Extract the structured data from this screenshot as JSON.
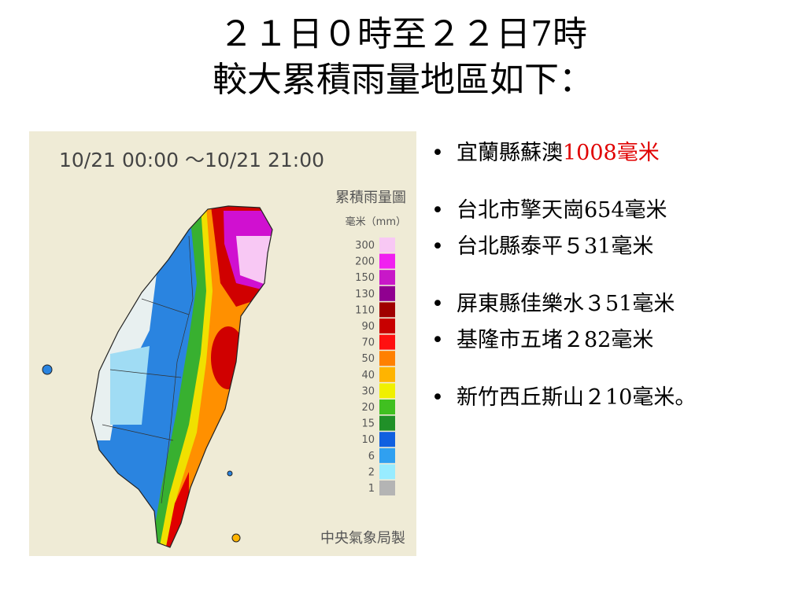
{
  "header": {
    "title_lines": [
      "２１日０時至２２日7時",
      "較大累積雨量地區如下："
    ]
  },
  "map": {
    "period": "10/21 00:00 ～10/21 21:00",
    "legend_title": "累積雨量圖",
    "legend_unit": "毫米（mm）",
    "credit": "中央氣象局製",
    "legend": [
      {
        "label": "300",
        "color": "#f8c8f4"
      },
      {
        "label": "200",
        "color": "#f020f0"
      },
      {
        "label": "150",
        "color": "#c818c8"
      },
      {
        "label": "130",
        "color": "#900090"
      },
      {
        "label": "110",
        "color": "#a00000"
      },
      {
        "label": "90",
        "color": "#c80000"
      },
      {
        "label": "70",
        "color": "#ff1010"
      },
      {
        "label": "50",
        "color": "#ff8000"
      },
      {
        "label": "40",
        "color": "#ffb400"
      },
      {
        "label": "30",
        "color": "#f0f000"
      },
      {
        "label": "20",
        "color": "#40c020"
      },
      {
        "label": "15",
        "color": "#209028"
      },
      {
        "label": "10",
        "color": "#1060e0"
      },
      {
        "label": "6",
        "color": "#30a0f0"
      },
      {
        "label": "2",
        "color": "#98ecff"
      },
      {
        "label": "1",
        "color": "#b4b4b4"
      }
    ]
  },
  "bullets": [
    [
      {
        "text": "宜蘭縣蘇澳",
        "highlight": "1008毫米"
      }
    ],
    [
      {
        "text": "台北市擎天崗654毫米"
      },
      {
        "text": "台北縣泰平５31毫米"
      }
    ],
    [
      {
        "text": "屏東縣佳樂水３51毫米"
      },
      {
        "text": "基隆市五堵２82毫米"
      }
    ],
    [
      {
        "text": "新竹西丘斯山２10毫米。"
      }
    ]
  ]
}
